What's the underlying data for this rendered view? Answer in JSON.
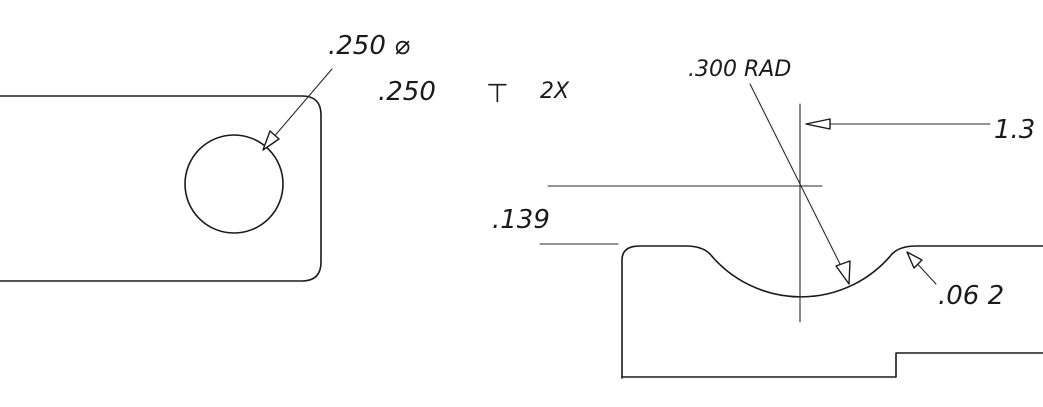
{
  "left_view": {
    "hole_dia_label": ".250 ⌀",
    "hole_depth_label": ".250",
    "depth_symbol": "⊤",
    "hole_qty_label": "2X"
  },
  "right_view": {
    "radius_label": ".300 RAD",
    "depth_label": ".139",
    "offset_label": "1.3",
    "chamfer_label": ".06 2"
  }
}
